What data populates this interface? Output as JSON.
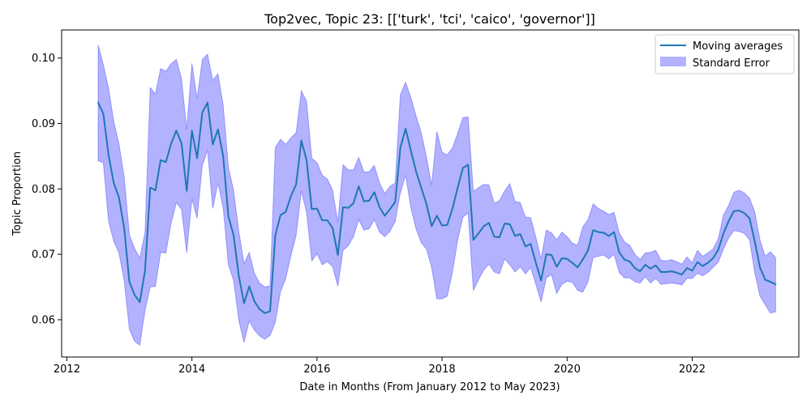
{
  "chart_data": {
    "type": "line",
    "title": "Top2vec, Topic 23: [['turk', 'tci', 'caico', 'governor']]",
    "xlabel": "Date in Months (From January 2012 to May 2023)",
    "ylabel": "Topic Proportion",
    "xlim": [
      "2011-12-01",
      "2023-09-15"
    ],
    "ylim": [
      0.0543,
      0.1043
    ],
    "x_ticks": [
      "2012",
      "2014",
      "2016",
      "2018",
      "2020",
      "2022"
    ],
    "y_ticks": [
      "0.06",
      "0.07",
      "0.08",
      "0.09",
      "0.10"
    ],
    "grid": false,
    "legend_position": "upper right",
    "colors": {
      "line": "#1f77b4",
      "band_fill": "#0000ff",
      "band_opacity": 0.3
    },
    "x": [
      "2012-07",
      "2012-08",
      "2012-09",
      "2012-10",
      "2012-11",
      "2012-12",
      "2013-01",
      "2013-02",
      "2013-03",
      "2013-04",
      "2013-05",
      "2013-06",
      "2013-07",
      "2013-08",
      "2013-09",
      "2013-10",
      "2013-11",
      "2013-12",
      "2014-01",
      "2014-02",
      "2014-03",
      "2014-04",
      "2014-05",
      "2014-06",
      "2014-07",
      "2014-08",
      "2014-09",
      "2014-10",
      "2014-11",
      "2014-12",
      "2015-01",
      "2015-02",
      "2015-03",
      "2015-04",
      "2015-05",
      "2015-06",
      "2015-07",
      "2015-08",
      "2015-09",
      "2015-10",
      "2015-11",
      "2015-12",
      "2016-01",
      "2016-02",
      "2016-03",
      "2016-04",
      "2016-05",
      "2016-06",
      "2016-07",
      "2016-08",
      "2016-09",
      "2016-10",
      "2016-11",
      "2016-12",
      "2017-01",
      "2017-02",
      "2017-03",
      "2017-04",
      "2017-05",
      "2017-06",
      "2017-07",
      "2017-08",
      "2017-09",
      "2017-10",
      "2017-11",
      "2017-12",
      "2018-01",
      "2018-02",
      "2018-03",
      "2018-04",
      "2018-05",
      "2018-06",
      "2018-07",
      "2018-08",
      "2018-09",
      "2018-10",
      "2018-11",
      "2018-12",
      "2019-01",
      "2019-02",
      "2019-03",
      "2019-04",
      "2019-05",
      "2019-06",
      "2019-07",
      "2019-08",
      "2019-09",
      "2019-10",
      "2019-11",
      "2019-12",
      "2020-01",
      "2020-02",
      "2020-03",
      "2020-04",
      "2020-05",
      "2020-06",
      "2020-07",
      "2020-08",
      "2020-09",
      "2020-10",
      "2020-11",
      "2020-12",
      "2021-01",
      "2021-02",
      "2021-03",
      "2021-04",
      "2021-05",
      "2021-06",
      "2021-07",
      "2021-08",
      "2021-09",
      "2021-10",
      "2021-11",
      "2021-12",
      "2022-01",
      "2022-02",
      "2022-03",
      "2022-04",
      "2022-05",
      "2022-06",
      "2022-07",
      "2022-08",
      "2022-09",
      "2022-10",
      "2022-11",
      "2022-12",
      "2023-01",
      "2023-02",
      "2023-03",
      "2023-04",
      "2023-05"
    ],
    "series": [
      {
        "name": "Moving averages",
        "values": [
          0.0932,
          0.0915,
          0.0852,
          0.0809,
          0.0787,
          0.074,
          0.0658,
          0.0638,
          0.0627,
          0.0675,
          0.0802,
          0.0798,
          0.0844,
          0.0841,
          0.0869,
          0.0889,
          0.087,
          0.0797,
          0.0889,
          0.0847,
          0.0917,
          0.0932,
          0.0868,
          0.0891,
          0.085,
          0.0758,
          0.0729,
          0.0667,
          0.0625,
          0.0651,
          0.0628,
          0.0616,
          0.061,
          0.0613,
          0.0729,
          0.076,
          0.0765,
          0.0789,
          0.0807,
          0.0874,
          0.0844,
          0.0769,
          0.077,
          0.0752,
          0.0752,
          0.074,
          0.0699,
          0.0772,
          0.0771,
          0.0778,
          0.0804,
          0.0781,
          0.0782,
          0.0795,
          0.0772,
          0.0759,
          0.0769,
          0.078,
          0.0863,
          0.0892,
          0.0859,
          0.0827,
          0.0802,
          0.0777,
          0.0743,
          0.0759,
          0.0744,
          0.0745,
          0.077,
          0.0802,
          0.0832,
          0.0837,
          0.0722,
          0.0732,
          0.0743,
          0.0748,
          0.0727,
          0.0726,
          0.0747,
          0.0746,
          0.0728,
          0.0731,
          0.0712,
          0.0716,
          0.0687,
          0.066,
          0.07,
          0.0699,
          0.0681,
          0.0694,
          0.0693,
          0.0687,
          0.068,
          0.0692,
          0.0706,
          0.0737,
          0.0734,
          0.0733,
          0.0728,
          0.0734,
          0.0703,
          0.0692,
          0.0689,
          0.0679,
          0.0674,
          0.0684,
          0.0678,
          0.0683,
          0.0673,
          0.0673,
          0.0674,
          0.0672,
          0.0669,
          0.0679,
          0.0675,
          0.0688,
          0.0682,
          0.0687,
          0.0694,
          0.0707,
          0.0732,
          0.0751,
          0.0766,
          0.0767,
          0.0763,
          0.0755,
          0.072,
          0.068,
          0.0661,
          0.0658,
          0.0654
        ]
      },
      {
        "name": "Standard Error",
        "lower": [
          0.0843,
          0.084,
          0.0751,
          0.072,
          0.0702,
          0.066,
          0.0585,
          0.0567,
          0.0561,
          0.0614,
          0.065,
          0.0651,
          0.0703,
          0.0702,
          0.0747,
          0.0779,
          0.0769,
          0.0702,
          0.0785,
          0.0755,
          0.0836,
          0.0859,
          0.077,
          0.0809,
          0.0771,
          0.0684,
          0.066,
          0.0599,
          0.0565,
          0.0598,
          0.0584,
          0.0575,
          0.057,
          0.0576,
          0.0596,
          0.0643,
          0.0663,
          0.0698,
          0.0729,
          0.0797,
          0.0764,
          0.069,
          0.0701,
          0.0684,
          0.0689,
          0.0681,
          0.0651,
          0.0706,
          0.0713,
          0.0727,
          0.0753,
          0.0737,
          0.0739,
          0.0753,
          0.0734,
          0.0727,
          0.0735,
          0.075,
          0.0794,
          0.0821,
          0.0772,
          0.0739,
          0.0718,
          0.0708,
          0.068,
          0.0632,
          0.0632,
          0.0636,
          0.0673,
          0.0722,
          0.0757,
          0.0763,
          0.0645,
          0.0661,
          0.0676,
          0.0685,
          0.0673,
          0.067,
          0.0693,
          0.0684,
          0.0673,
          0.0681,
          0.067,
          0.068,
          0.0654,
          0.0627,
          0.0664,
          0.0669,
          0.064,
          0.0654,
          0.0659,
          0.0657,
          0.0645,
          0.0642,
          0.0658,
          0.0695,
          0.0697,
          0.0699,
          0.0693,
          0.07,
          0.0672,
          0.0664,
          0.0664,
          0.0658,
          0.0656,
          0.0666,
          0.0656,
          0.0663,
          0.0654,
          0.0655,
          0.0656,
          0.0655,
          0.0653,
          0.0663,
          0.0663,
          0.0671,
          0.0667,
          0.0672,
          0.068,
          0.0688,
          0.0708,
          0.0725,
          0.0736,
          0.0735,
          0.0732,
          0.0722,
          0.0672,
          0.0636,
          0.0623,
          0.061,
          0.0612
        ],
        "upper": [
          0.102,
          0.099,
          0.0954,
          0.0903,
          0.0869,
          0.0818,
          0.073,
          0.0709,
          0.0694,
          0.0734,
          0.0955,
          0.0945,
          0.0984,
          0.098,
          0.0991,
          0.0998,
          0.0969,
          0.0891,
          0.0992,
          0.0938,
          0.0998,
          0.1006,
          0.0966,
          0.0976,
          0.0928,
          0.0833,
          0.0797,
          0.0735,
          0.0686,
          0.0703,
          0.0671,
          0.0656,
          0.065,
          0.0652,
          0.0863,
          0.0876,
          0.0868,
          0.0878,
          0.0886,
          0.095,
          0.0934,
          0.0847,
          0.084,
          0.0821,
          0.0815,
          0.0798,
          0.0749,
          0.0837,
          0.0829,
          0.0829,
          0.0848,
          0.0826,
          0.0826,
          0.0836,
          0.0809,
          0.0793,
          0.0804,
          0.0809,
          0.0944,
          0.0963,
          0.094,
          0.0912,
          0.0886,
          0.0849,
          0.0806,
          0.0888,
          0.0856,
          0.0852,
          0.0863,
          0.0885,
          0.0909,
          0.091,
          0.0796,
          0.0802,
          0.0807,
          0.0806,
          0.0778,
          0.0782,
          0.0797,
          0.0808,
          0.0781,
          0.0779,
          0.0757,
          0.0756,
          0.0726,
          0.0693,
          0.0737,
          0.0733,
          0.0722,
          0.0734,
          0.0727,
          0.0717,
          0.0714,
          0.0742,
          0.0753,
          0.0777,
          0.077,
          0.0766,
          0.0761,
          0.0764,
          0.0733,
          0.0719,
          0.0714,
          0.07,
          0.0692,
          0.0702,
          0.0703,
          0.0706,
          0.0691,
          0.069,
          0.0692,
          0.0689,
          0.0685,
          0.0696,
          0.0687,
          0.0706,
          0.0697,
          0.0702,
          0.0708,
          0.0724,
          0.076,
          0.0775,
          0.0795,
          0.0798,
          0.0794,
          0.0786,
          0.0765,
          0.0722,
          0.0697,
          0.0704,
          0.0695
        ]
      }
    ]
  }
}
